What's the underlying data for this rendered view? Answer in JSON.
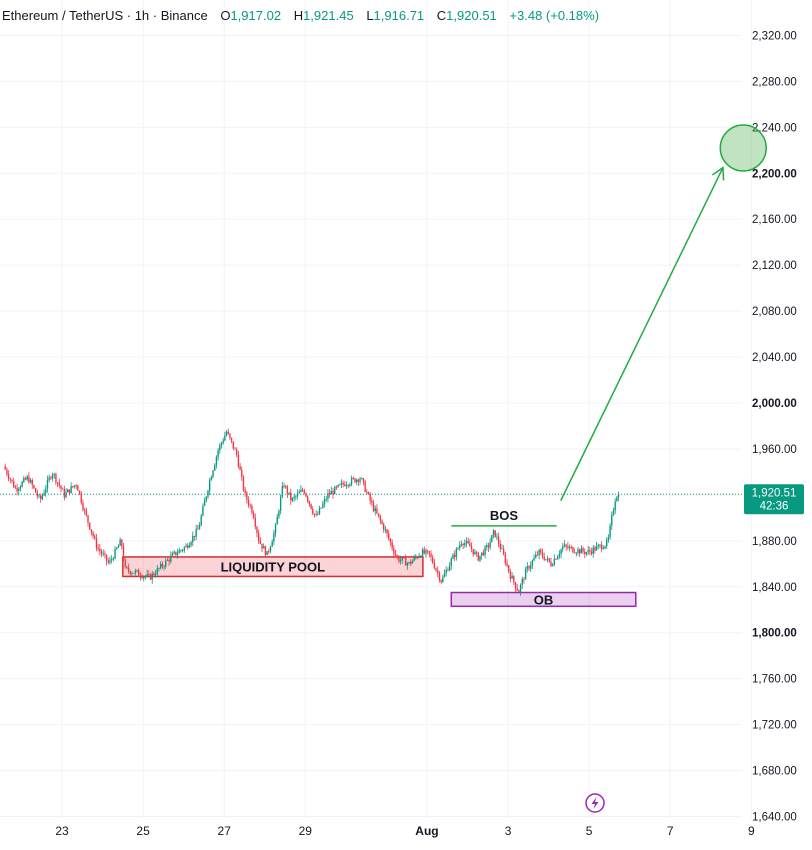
{
  "header": {
    "symbol": "Ethereum / TetherUS · 1h · Binance",
    "open_label": "O",
    "open": "1,917.02",
    "high_label": "H",
    "high": "1,921.45",
    "low_label": "L",
    "low": "1,916.71",
    "close_label": "C",
    "close": "1,920.51",
    "change": "+3.48 (+0.18%)"
  },
  "colors": {
    "up": "#089981",
    "down": "#f23645",
    "grid": "#f0f3fa",
    "accent_green": "#22ab3f",
    "ob": "#9c27b0"
  },
  "chart_data": {
    "type": "candlestick",
    "ylim": [
      1630,
      2335
    ],
    "y_ticks": [
      1640,
      1680,
      1720,
      1760,
      1800,
      1840,
      1880,
      1920,
      1960,
      2000,
      2040,
      2080,
      2120,
      2160,
      2200,
      2240,
      2280,
      2320
    ],
    "y_tick_labels": [
      "1,640.00",
      "1,680.00",
      "1,720.00",
      "1,760.00",
      "1,800.00",
      "1,840.00",
      "1,880.00",
      "1,920.00",
      "1,960.00",
      "2,000.00",
      "2,040.00",
      "2,080.00",
      "2,120.00",
      "2,160.00",
      "2,200.00",
      "2,240.00",
      "2,280.00",
      "2,320.00"
    ],
    "bold_ticks": [
      "1,800.00",
      "2,000.00",
      "2,200.00"
    ],
    "x_ticks": [
      {
        "label": "23",
        "day": 23
      },
      {
        "label": "25",
        "day": 25
      },
      {
        "label": "27",
        "day": 27
      },
      {
        "label": "29",
        "day": 29
      },
      {
        "label": "Aug",
        "day": 32,
        "bold": true
      },
      {
        "label": "3",
        "day": 34
      },
      {
        "label": "5",
        "day": 36
      },
      {
        "label": "7",
        "day": 38
      },
      {
        "label": "9",
        "day": 40
      }
    ],
    "x_range_days": [
      21.6,
      41.0
    ],
    "price_path": [
      [
        21.6,
        1945
      ],
      [
        21.9,
        1925
      ],
      [
        22.2,
        1935
      ],
      [
        22.5,
        1915
      ],
      [
        22.8,
        1940
      ],
      [
        23.1,
        1920
      ],
      [
        23.4,
        1930
      ],
      [
        23.6,
        1905
      ],
      [
        23.9,
        1875
      ],
      [
        24.2,
        1860
      ],
      [
        24.5,
        1880
      ],
      [
        24.6,
        1855
      ],
      [
        24.9,
        1852
      ],
      [
        25.2,
        1848
      ],
      [
        25.5,
        1858
      ],
      [
        25.8,
        1868
      ],
      [
        26.1,
        1875
      ],
      [
        26.4,
        1890
      ],
      [
        26.7,
        1935
      ],
      [
        26.9,
        1960
      ],
      [
        27.1,
        1975
      ],
      [
        27.35,
        1955
      ],
      [
        27.55,
        1920
      ],
      [
        27.75,
        1905
      ],
      [
        27.9,
        1880
      ],
      [
        28.1,
        1868
      ],
      [
        28.3,
        1890
      ],
      [
        28.5,
        1930
      ],
      [
        28.7,
        1915
      ],
      [
        29.0,
        1925
      ],
      [
        29.3,
        1900
      ],
      [
        29.6,
        1920
      ],
      [
        30.0,
        1930
      ],
      [
        30.4,
        1935
      ],
      [
        30.7,
        1910
      ],
      [
        31.0,
        1890
      ],
      [
        31.3,
        1865
      ],
      [
        31.6,
        1860
      ],
      [
        31.9,
        1870
      ],
      [
        32.1,
        1868
      ],
      [
        32.4,
        1845
      ],
      [
        32.6,
        1860
      ],
      [
        32.9,
        1880
      ],
      [
        33.1,
        1875
      ],
      [
        33.3,
        1865
      ],
      [
        33.55,
        1875
      ],
      [
        33.7,
        1888
      ],
      [
        33.9,
        1870
      ],
      [
        34.1,
        1850
      ],
      [
        34.3,
        1836
      ],
      [
        34.5,
        1855
      ],
      [
        34.8,
        1870
      ],
      [
        35.1,
        1860
      ],
      [
        35.4,
        1875
      ],
      [
        35.7,
        1872
      ],
      [
        36.0,
        1870
      ],
      [
        36.3,
        1875
      ],
      [
        36.5,
        1878
      ],
      [
        36.6,
        1900
      ],
      [
        36.7,
        1920
      ],
      [
        36.75,
        1920.51
      ]
    ],
    "current_price": 1920.51,
    "current_price_label": "1,920.51",
    "countdown_label": "42:36",
    "annotations": {
      "liquidity_pool": {
        "label": "LIQUIDITY POOL",
        "day_start": 24.5,
        "day_end": 31.9,
        "price_low": 1849,
        "price_high": 1866
      },
      "order_block": {
        "label": "OB",
        "day_start": 32.6,
        "day_end": 37.15,
        "price_low": 1823,
        "price_high": 1835
      },
      "bos": {
        "label": "BOS",
        "day_start": 32.6,
        "day_end": 35.2,
        "price": 1893
      },
      "arrow": {
        "day_start": 35.3,
        "price_start": 1915,
        "day_end": 39.3,
        "price_end": 2205
      },
      "target": {
        "day": 39.8,
        "price": 2222,
        "radius_price": 20
      }
    }
  }
}
